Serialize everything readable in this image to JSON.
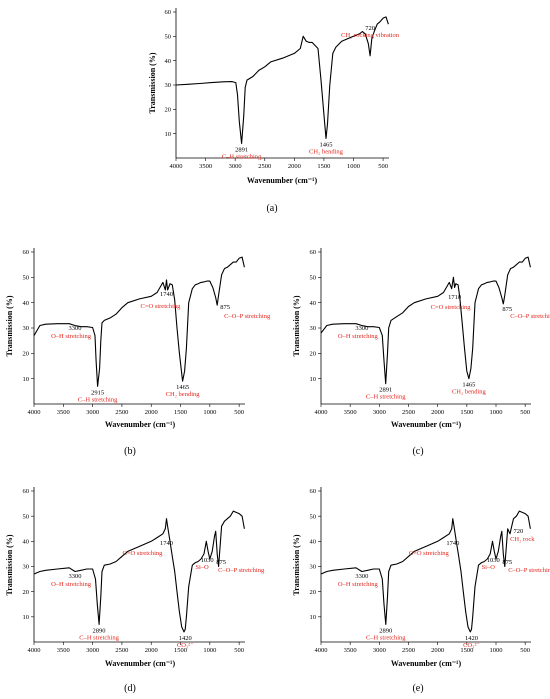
{
  "colors": {
    "curve": "#000000",
    "assignment": "#e3261d",
    "axis": "#000000"
  },
  "chart_data": [
    {
      "type": "line",
      "panel": "(a)",
      "xlabel": "Wavenumber  (cm⁻¹)",
      "ylabel": "Transmission (%)",
      "xlim": [
        4000,
        400
      ],
      "ylim": [
        0,
        60
      ],
      "x_reversed": true,
      "xticks": [
        4000,
        3500,
        3000,
        2500,
        2000,
        1500,
        1000,
        500
      ],
      "yticks": [
        10,
        20,
        30,
        40,
        50,
        60
      ],
      "x": [
        4000,
        3800,
        3600,
        3400,
        3200,
        3050,
        2990,
        2960,
        2930,
        2891,
        2855,
        2830,
        2800,
        2700,
        2600,
        2500,
        2400,
        2200,
        2000,
        1900,
        1850,
        1800,
        1750,
        1700,
        1600,
        1550,
        1500,
        1465,
        1440,
        1400,
        1350,
        1300,
        1200,
        1100,
        1000,
        900,
        850,
        800,
        750,
        720,
        690,
        650,
        600,
        550,
        500,
        450,
        410
      ],
      "y": [
        30,
        30.3,
        30.6,
        31,
        31.3,
        31.4,
        31,
        26,
        15,
        6,
        17,
        29,
        32,
        33.5,
        36,
        37.5,
        39.5,
        41,
        43,
        45,
        50,
        48,
        47.5,
        47.5,
        45,
        32,
        18,
        8,
        14,
        30,
        43,
        45.5,
        48,
        49,
        50,
        51,
        52,
        51,
        47,
        42,
        49,
        52,
        55,
        56,
        57.5,
        58,
        55
      ],
      "annotations": [
        {
          "id": "a1",
          "number": "2891",
          "label": "C–H stretching",
          "x": 2891
        },
        {
          "id": "a2",
          "number": "1465",
          "label": "CH₂ bending",
          "x": 1465
        },
        {
          "id": "a3",
          "number": "720",
          "label": "CH₂ rocking vibration",
          "x": 720
        }
      ]
    },
    {
      "type": "line",
      "panel": "(b)",
      "xlabel": "Wavenumber  (cm⁻¹)",
      "ylabel": "Transmission (%)",
      "xlim": [
        4000,
        400
      ],
      "ylim": [
        0,
        60
      ],
      "x_reversed": true,
      "xticks": [
        4000,
        3500,
        3000,
        2500,
        2000,
        1500,
        1000,
        500
      ],
      "yticks": [
        10,
        20,
        30,
        40,
        50,
        60
      ],
      "x": [
        4000,
        3900,
        3800,
        3600,
        3400,
        3300,
        3200,
        3100,
        3000,
        2960,
        2940,
        2915,
        2880,
        2860,
        2840,
        2800,
        2700,
        2600,
        2500,
        2400,
        2200,
        2000,
        1900,
        1800,
        1760,
        1740,
        1720,
        1680,
        1640,
        1600,
        1560,
        1520,
        1465,
        1430,
        1400,
        1360,
        1300,
        1250,
        1200,
        1150,
        1100,
        1050,
        1000,
        950,
        900,
        875,
        850,
        800,
        750,
        700,
        650,
        600,
        550,
        500,
        450,
        410
      ],
      "y": [
        27,
        31,
        31.5,
        31.7,
        31.7,
        31,
        30.5,
        30.5,
        30.2,
        27,
        17,
        7,
        14,
        25,
        32,
        33,
        34,
        35.5,
        38,
        40,
        41.5,
        42.5,
        44,
        48,
        45,
        49,
        45,
        47.5,
        47,
        41,
        30,
        20,
        9,
        13,
        22,
        40,
        45.5,
        47,
        47.5,
        48,
        48.2,
        48.5,
        48.5,
        46,
        42,
        39,
        43,
        51,
        53.5,
        54,
        55,
        56,
        56,
        57.5,
        58,
        54
      ],
      "annotations": [
        {
          "id": "b1",
          "number": "3300",
          "label": "O–H stretching",
          "x": 3300
        },
        {
          "id": "b2",
          "number": "2915",
          "label": "C–H stretching",
          "x": 2915
        },
        {
          "id": "b3",
          "number": "1740",
          "label": "C=O stretching",
          "x": 1740
        },
        {
          "id": "b4",
          "number": "1465",
          "label": "CH₂ bending",
          "x": 1465
        },
        {
          "id": "b5",
          "number": "875",
          "label": "C–O–P stretching",
          "x": 875
        }
      ]
    },
    {
      "type": "line",
      "panel": "(c)",
      "xlabel": "Wavenumber  (cm⁻¹)",
      "ylabel": "Transmission (%)",
      "xlim": [
        4000,
        400
      ],
      "ylim": [
        0,
        60
      ],
      "x_reversed": true,
      "xticks": [
        4000,
        3500,
        3000,
        2500,
        2000,
        1500,
        1000,
        500
      ],
      "yticks": [
        10,
        20,
        30,
        40,
        50,
        60
      ],
      "x": [
        4000,
        3900,
        3800,
        3600,
        3400,
        3300,
        3200,
        3100,
        3000,
        2950,
        2920,
        2891,
        2860,
        2840,
        2800,
        2700,
        2600,
        2500,
        2400,
        2200,
        2000,
        1900,
        1800,
        1760,
        1730,
        1710,
        1690,
        1650,
        1620,
        1580,
        1540,
        1500,
        1465,
        1430,
        1400,
        1360,
        1300,
        1250,
        1200,
        1150,
        1100,
        1050,
        1000,
        950,
        900,
        875,
        850,
        800,
        750,
        700,
        650,
        600,
        550,
        500,
        450,
        410
      ],
      "y": [
        28,
        31,
        31.5,
        31.7,
        31.7,
        31,
        30.5,
        30.5,
        30.2,
        27,
        17,
        8,
        20,
        30,
        33,
        34.5,
        36,
        38.5,
        40,
        41.5,
        42.5,
        44,
        48,
        45.5,
        50,
        46,
        47.5,
        47,
        42,
        32,
        22,
        13,
        10,
        14,
        22,
        40,
        45.5,
        47,
        47.5,
        48,
        48.2,
        48.5,
        48.5,
        46,
        42,
        39.5,
        43,
        51,
        53.5,
        54,
        55,
        56,
        56,
        57.5,
        58,
        54
      ],
      "annotations": [
        {
          "id": "c1",
          "number": "3300",
          "label": "O–H stretching",
          "x": 3300
        },
        {
          "id": "c2",
          "number": "2891",
          "label": "C–H stretching",
          "x": 2891
        },
        {
          "id": "c3",
          "number": "1710",
          "label": "C=O stretching",
          "x": 1710
        },
        {
          "id": "c4",
          "number": "1465",
          "label": "CH₂ bending",
          "x": 1465
        },
        {
          "id": "c5",
          "number": "875",
          "label": "C–O–P stretching",
          "x": 875
        }
      ]
    },
    {
      "type": "line",
      "panel": "(d)",
      "xlabel": "Wavenumber  (cm⁻¹)",
      "ylabel": "Transmission (%)",
      "xlim": [
        4000,
        400
      ],
      "ylim": [
        0,
        60
      ],
      "x_reversed": true,
      "xticks": [
        4000,
        3500,
        3000,
        2500,
        2000,
        1500,
        1000,
        500
      ],
      "yticks": [
        10,
        20,
        30,
        40,
        50,
        60
      ],
      "x": [
        4000,
        3900,
        3800,
        3600,
        3400,
        3300,
        3200,
        3100,
        3000,
        2950,
        2920,
        2890,
        2860,
        2840,
        2800,
        2700,
        2600,
        2500,
        2400,
        2200,
        2000,
        1900,
        1800,
        1760,
        1740,
        1720,
        1680,
        1640,
        1600,
        1560,
        1520,
        1480,
        1440,
        1420,
        1400,
        1360,
        1300,
        1250,
        1200,
        1150,
        1100,
        1060,
        1030,
        1000,
        960,
        920,
        900,
        875,
        850,
        800,
        750,
        700,
        650,
        600,
        550,
        500,
        450,
        410
      ],
      "y": [
        27,
        28,
        28.5,
        29,
        29.5,
        28,
        28.5,
        29,
        29,
        25,
        15,
        7,
        18,
        28,
        30.5,
        31,
        32,
        34,
        36,
        38,
        40,
        41.5,
        43,
        45,
        49,
        46,
        40,
        34,
        28,
        20,
        12,
        6,
        4,
        5,
        10,
        22,
        30.5,
        31.5,
        32,
        33,
        35,
        40,
        36,
        33,
        36,
        42,
        44,
        35,
        30,
        46,
        48,
        49,
        50,
        52,
        51.5,
        51,
        50,
        45
      ],
      "annotations": [
        {
          "id": "d1",
          "number": "3300",
          "label": "O–H stretching",
          "x": 3300
        },
        {
          "id": "d2",
          "number": "2890",
          "label": "C–H stretching",
          "x": 2890
        },
        {
          "id": "d3",
          "number": "1740",
          "label": "C=O stretching",
          "x": 1740
        },
        {
          "id": "d4",
          "number": "1420",
          "label": "CO₃²⁻",
          "x": 1420
        },
        {
          "id": "d5",
          "number": "1030",
          "label": "Si–O",
          "x": 1030
        },
        {
          "id": "d6",
          "number": "875",
          "label": "C–O–P stretching",
          "x": 875
        }
      ]
    },
    {
      "type": "line",
      "panel": "(e)",
      "xlabel": "Wavenumber  (cm⁻¹)",
      "ylabel": "Transmission (%)",
      "xlim": [
        4000,
        400
      ],
      "ylim": [
        0,
        60
      ],
      "x_reversed": true,
      "xticks": [
        4000,
        3500,
        3000,
        2500,
        2000,
        1500,
        1000,
        500
      ],
      "yticks": [
        10,
        20,
        30,
        40,
        50,
        60
      ],
      "x": [
        4000,
        3900,
        3800,
        3600,
        3400,
        3300,
        3200,
        3100,
        3000,
        2950,
        2920,
        2890,
        2860,
        2840,
        2800,
        2700,
        2600,
        2500,
        2400,
        2200,
        2000,
        1900,
        1800,
        1760,
        1740,
        1720,
        1680,
        1640,
        1600,
        1560,
        1520,
        1480,
        1440,
        1420,
        1400,
        1360,
        1300,
        1250,
        1200,
        1150,
        1100,
        1060,
        1030,
        1000,
        960,
        920,
        900,
        875,
        850,
        800,
        760,
        720,
        700,
        650,
        600,
        550,
        500,
        450,
        410
      ],
      "y": [
        27,
        28,
        28.5,
        29,
        29.5,
        28,
        28.5,
        29,
        29,
        25,
        15,
        7,
        18,
        28,
        30.5,
        31,
        32,
        34,
        36,
        38,
        40,
        41.5,
        43,
        45,
        49,
        46,
        40,
        34,
        28,
        20,
        12,
        6,
        4,
        5,
        10,
        22,
        30.5,
        31.5,
        32,
        33,
        35,
        40,
        36,
        33,
        36,
        42,
        44,
        35,
        30,
        45,
        43,
        47,
        49,
        50,
        52,
        51.5,
        51,
        50,
        45
      ],
      "annotations": [
        {
          "id": "e1",
          "number": "3300",
          "label": "O–H stretching",
          "x": 3300
        },
        {
          "id": "e2",
          "number": "2890",
          "label": "C–H stretching",
          "x": 2890
        },
        {
          "id": "e3",
          "number": "1740",
          "label": "C=O stretching",
          "x": 1740
        },
        {
          "id": "e4",
          "number": "1420",
          "label": "CO₃²⁻",
          "x": 1420
        },
        {
          "id": "e5",
          "number": "1030",
          "label": "Si–O",
          "x": 1030
        },
        {
          "id": "e6",
          "number": "875",
          "label": "C–O–P stretching",
          "x": 875
        },
        {
          "id": "e7",
          "number": "720",
          "label": "CH₂ rock",
          "x": 720
        }
      ]
    }
  ]
}
